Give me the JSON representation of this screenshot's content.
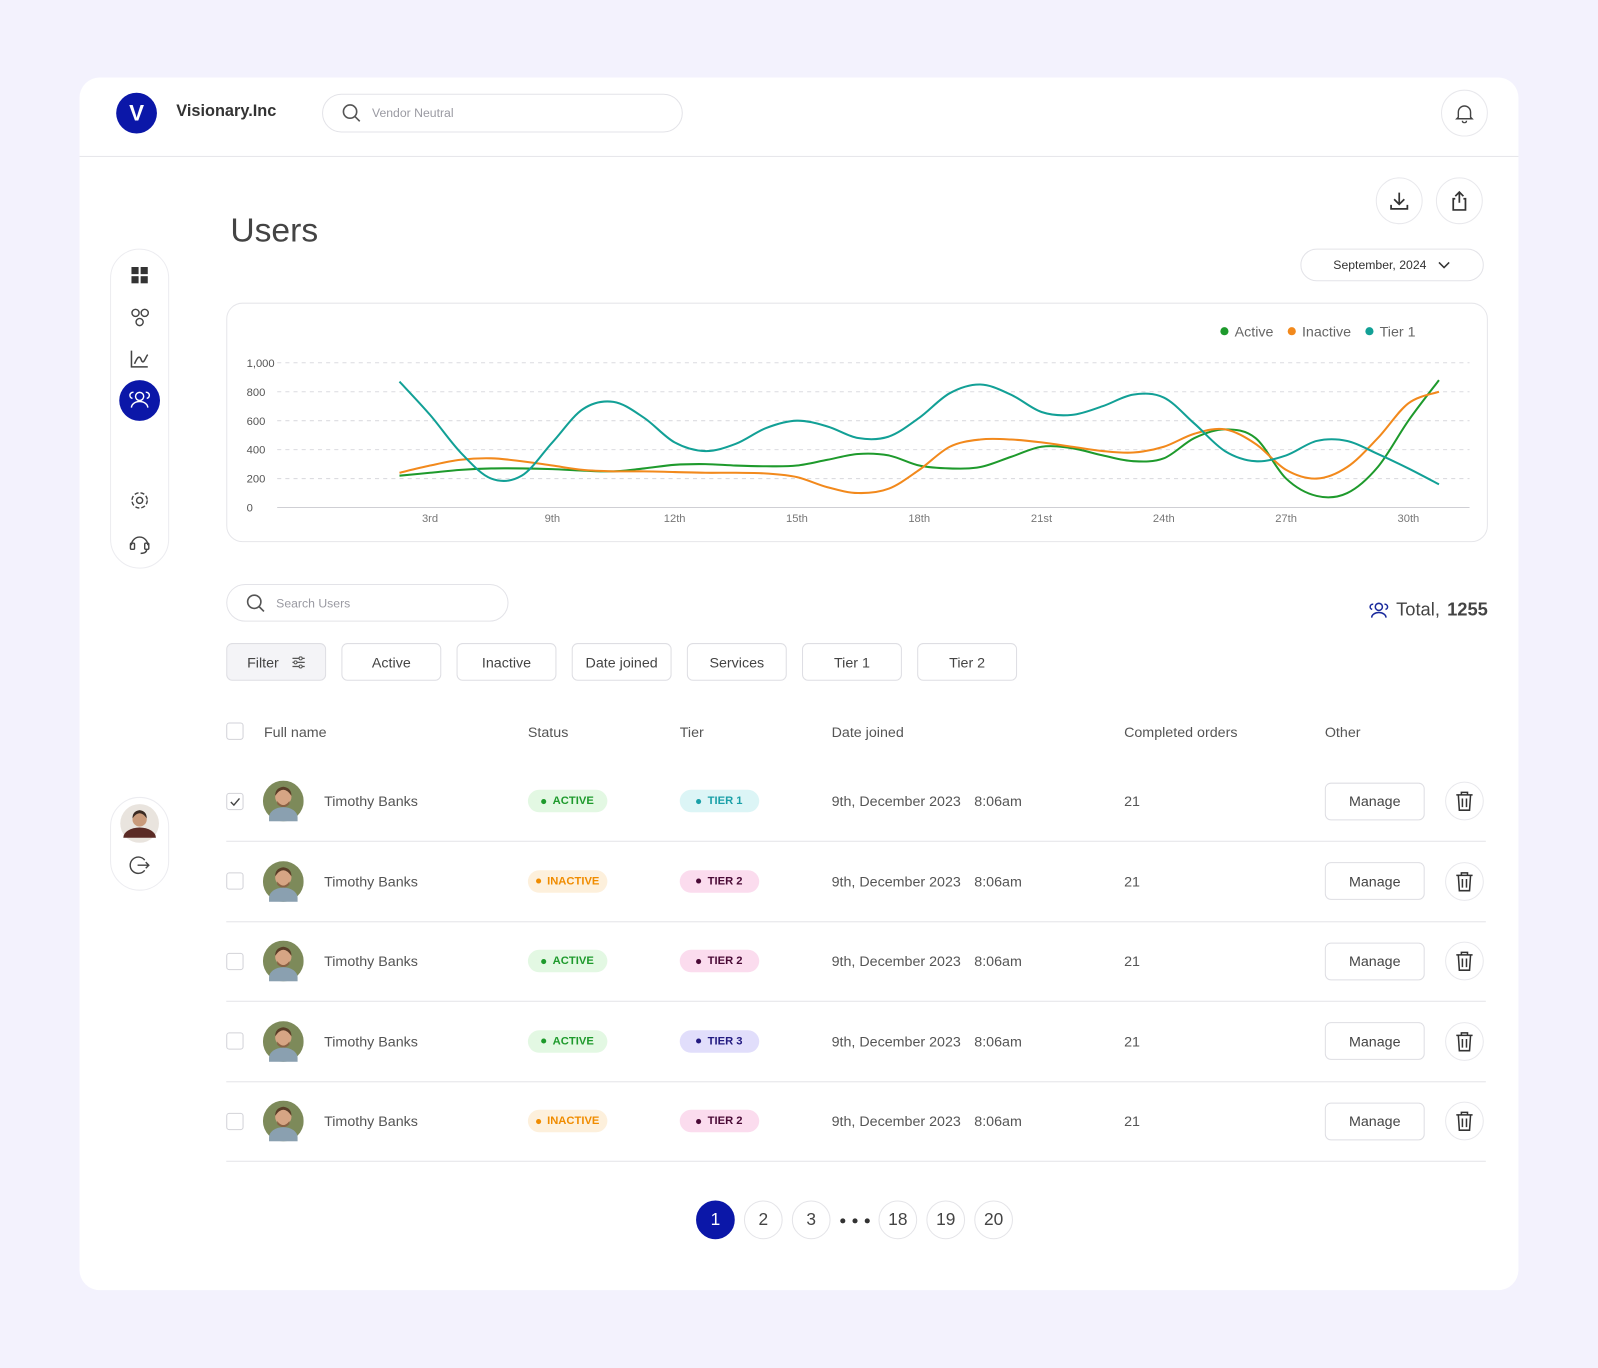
{
  "header": {
    "logo": "V",
    "brand": "Visionary.Inc",
    "search_placeholder": "Vendor Neutral"
  },
  "page": {
    "title": "Users",
    "period": "September, 2024"
  },
  "chart_data": {
    "type": "line",
    "categories": [
      null,
      "3rd",
      null,
      null,
      null,
      "9th",
      null,
      null,
      null,
      "12th",
      null,
      null,
      null,
      "15th",
      null,
      null,
      null,
      "18th",
      null,
      null,
      null,
      "21st",
      null,
      null,
      null,
      "24th",
      null,
      null,
      null,
      "27th",
      null,
      null,
      null,
      "30th",
      null
    ],
    "series": [
      {
        "name": "Active",
        "color": "#1e9a2c",
        "values": [
          220,
          240,
          260,
          270,
          270,
          265,
          255,
          250,
          270,
          295,
          300,
          290,
          285,
          290,
          330,
          370,
          360,
          290,
          270,
          280,
          350,
          420,
          410,
          360,
          320,
          340,
          480,
          540,
          480,
          200,
          80,
          100,
          280,
          600,
          880
        ]
      },
      {
        "name": "Inactive",
        "color": "#f2891c",
        "values": [
          240,
          290,
          330,
          340,
          320,
          290,
          260,
          250,
          250,
          245,
          240,
          240,
          235,
          210,
          140,
          100,
          130,
          260,
          420,
          470,
          470,
          450,
          420,
          390,
          380,
          420,
          510,
          540,
          440,
          260,
          200,
          280,
          480,
          720,
          800
        ]
      },
      {
        "name": "Tier 1",
        "color": "#12a096",
        "values": [
          870,
          640,
          380,
          200,
          220,
          450,
          680,
          730,
          620,
          450,
          390,
          440,
          550,
          600,
          560,
          480,
          490,
          620,
          790,
          850,
          780,
          660,
          640,
          700,
          780,
          760,
          580,
          390,
          320,
          360,
          460,
          460,
          370,
          270,
          160
        ]
      }
    ],
    "ylim": [
      0,
      1000
    ],
    "yticks": [
      0,
      200,
      400,
      600,
      800,
      {
        "value": 1000,
        "label": "1,000"
      }
    ],
    "grid": true,
    "legend": "top-right"
  },
  "users": {
    "search_placeholder": "Search Users",
    "total_label": "Total,",
    "total": 1255,
    "filters": [
      "Filter",
      "Active",
      "Inactive",
      "Date joined",
      "Services",
      "Tier 1",
      "Tier 2"
    ],
    "columns": [
      "Full name",
      "Status",
      "Tier",
      "Date joined",
      "Completed orders",
      "Other"
    ],
    "rows": [
      {
        "checked": true,
        "name": "Timothy Banks",
        "status": "ACTIVE",
        "tier": "TIER 1",
        "date": "9th, December 2023",
        "time": "8:06am",
        "orders": 21,
        "action": "Manage"
      },
      {
        "checked": false,
        "name": "Timothy Banks",
        "status": "INACTIVE",
        "tier": "TIER 2",
        "date": "9th, December 2023",
        "time": "8:06am",
        "orders": 21,
        "action": "Manage"
      },
      {
        "checked": false,
        "name": "Timothy Banks",
        "status": "ACTIVE",
        "tier": "TIER 2",
        "date": "9th, December 2023",
        "time": "8:06am",
        "orders": 21,
        "action": "Manage"
      },
      {
        "checked": false,
        "name": "Timothy Banks",
        "status": "ACTIVE",
        "tier": "TIER 3",
        "date": "9th, December 2023",
        "time": "8:06am",
        "orders": 21,
        "action": "Manage"
      },
      {
        "checked": false,
        "name": "Timothy Banks",
        "status": "INACTIVE",
        "tier": "TIER 2",
        "date": "9th, December 2023",
        "time": "8:06am",
        "orders": 21,
        "action": "Manage"
      }
    ],
    "pagination": [
      1,
      2,
      3,
      18,
      19,
      20
    ],
    "current_page": 1
  }
}
